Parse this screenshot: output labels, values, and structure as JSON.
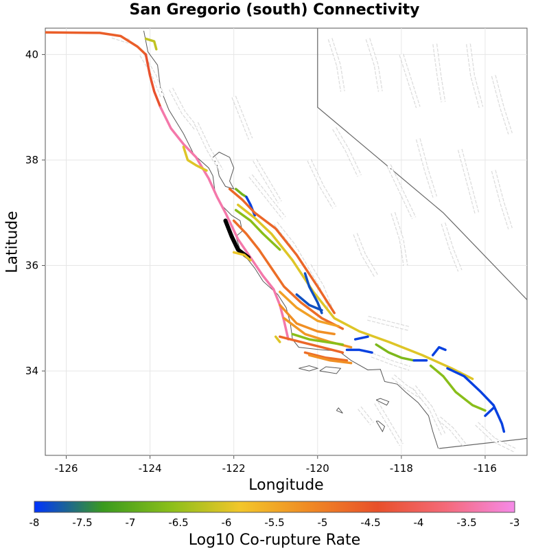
{
  "title": "San Gregorio (south) Connectivity",
  "axes": {
    "xlabel": "Longitude",
    "ylabel": "Latitude",
    "xlim": [
      -126.5,
      -115.0
    ],
    "ylim": [
      32.4,
      40.5
    ],
    "xticks": [
      -126,
      -124,
      -122,
      -120,
      -118,
      -116
    ],
    "yticks": [
      34,
      36,
      38,
      40
    ],
    "xtick_labels": [
      "-126",
      "-124",
      "-122",
      "-120",
      "-118",
      "-116"
    ],
    "ytick_labels": [
      "34",
      "36",
      "38",
      "40"
    ]
  },
  "colorbar": {
    "label": "Log10 Co-rupture Rate",
    "min": -8,
    "max": -3,
    "ticks": [
      "-8",
      "-7.5",
      "-7",
      "-6.5",
      "-6",
      "-5.5",
      "-5",
      "-4.5",
      "-4",
      "-3.5",
      "-3"
    ],
    "stops": [
      "#0033ff",
      "#3a9a1e",
      "#8cbf1a",
      "#f2c62a",
      "#f08a24",
      "#e8502a",
      "#f46a7a",
      "#f58ae8"
    ]
  },
  "source_section": "San Gregorio (south)",
  "fault_traces": [
    {
      "name": "mendocino-offshore",
      "rate": -4.6,
      "coords": [
        [
          -126.5,
          40.42
        ],
        [
          -125.2,
          40.41
        ],
        [
          -124.7,
          40.35
        ],
        [
          -124.3,
          40.15
        ],
        [
          -124.1,
          40.0
        ]
      ]
    },
    {
      "name": "san-andreas-north-coast",
      "rate": -4.4,
      "coords": [
        [
          -124.1,
          40.0
        ],
        [
          -124.0,
          39.6
        ],
        [
          -123.9,
          39.3
        ],
        [
          -123.75,
          39.0
        ]
      ]
    },
    {
      "name": "san-andreas-peninsula",
      "rate": -3.4,
      "coords": [
        [
          -123.75,
          39.0
        ],
        [
          -123.5,
          38.6
        ],
        [
          -123.2,
          38.3
        ],
        [
          -122.9,
          38.05
        ],
        [
          -122.6,
          37.65
        ],
        [
          -122.4,
          37.3
        ],
        [
          -122.2,
          37.0
        ],
        [
          -121.9,
          36.5
        ],
        [
          -121.6,
          36.15
        ],
        [
          -121.3,
          35.8
        ],
        [
          -121.05,
          35.55
        ],
        [
          -120.9,
          35.25
        ],
        [
          -120.8,
          34.95
        ],
        [
          -120.7,
          34.6
        ]
      ]
    },
    {
      "name": "maacama-green",
      "rate": -6.2,
      "coords": [
        [
          -124.1,
          40.3
        ],
        [
          -123.9,
          40.25
        ],
        [
          -123.85,
          40.1
        ]
      ]
    },
    {
      "name": "point-reyes-offshore",
      "rate": -6.0,
      "coords": [
        [
          -123.2,
          38.25
        ],
        [
          -123.1,
          38.0
        ],
        [
          -122.9,
          37.9
        ],
        [
          -122.65,
          37.8
        ]
      ]
    },
    {
      "name": "hayward-green",
      "rate": -6.8,
      "coords": [
        [
          -121.95,
          37.45
        ],
        [
          -121.8,
          37.35
        ],
        [
          -121.7,
          37.3
        ]
      ]
    },
    {
      "name": "calaveras-blue",
      "rate": -7.9,
      "coords": [
        [
          -121.7,
          37.3
        ],
        [
          -121.6,
          37.15
        ],
        [
          -121.5,
          36.95
        ]
      ]
    },
    {
      "name": "calaveras-orange",
      "rate": -4.7,
      "coords": [
        [
          -122.1,
          37.45
        ],
        [
          -121.8,
          37.25
        ],
        [
          -121.5,
          37.0
        ],
        [
          -121.0,
          36.7
        ],
        [
          -120.5,
          36.2
        ],
        [
          -120.0,
          35.6
        ],
        [
          -119.6,
          35.1
        ]
      ]
    },
    {
      "name": "sargent-lime",
      "rate": -6.0,
      "coords": [
        [
          -121.9,
          37.15
        ],
        [
          -121.5,
          36.9
        ],
        [
          -121.1,
          36.6
        ],
        [
          -120.6,
          36.1
        ],
        [
          -120.1,
          35.5
        ],
        [
          -119.6,
          35.0
        ],
        [
          -119.0,
          34.75
        ],
        [
          -118.3,
          34.55
        ],
        [
          -117.5,
          34.3
        ],
        [
          -116.8,
          34.05
        ],
        [
          -116.3,
          33.85
        ]
      ]
    },
    {
      "name": "monterey-bay-orange",
      "rate": -4.8,
      "coords": [
        [
          -122.0,
          36.85
        ],
        [
          -121.7,
          36.6
        ],
        [
          -121.4,
          36.3
        ],
        [
          -121.1,
          35.95
        ],
        [
          -120.8,
          35.6
        ],
        [
          -120.4,
          35.3
        ],
        [
          -119.9,
          35.0
        ],
        [
          -119.4,
          34.8
        ]
      ]
    },
    {
      "name": "san-gregorio-south",
      "rate": -3.0,
      "source": true,
      "coords": [
        [
          -122.2,
          36.85
        ],
        [
          -122.05,
          36.55
        ],
        [
          -121.9,
          36.3
        ],
        [
          -121.65,
          36.15
        ]
      ]
    },
    {
      "name": "hosgri-lime",
      "rate": -5.9,
      "coords": [
        [
          -122.0,
          36.25
        ],
        [
          -121.75,
          36.2
        ],
        [
          -121.6,
          36.1
        ]
      ]
    },
    {
      "name": "rinconada-green",
      "rate": -6.6,
      "coords": [
        [
          -121.95,
          37.05
        ],
        [
          -121.6,
          36.85
        ],
        [
          -121.3,
          36.6
        ],
        [
          -120.9,
          36.3
        ]
      ]
    },
    {
      "name": "temblor-blue",
      "rate": -7.8,
      "coords": [
        [
          -120.3,
          35.85
        ],
        [
          -120.2,
          35.6
        ],
        [
          -120.0,
          35.3
        ],
        [
          -119.9,
          35.1
        ]
      ]
    },
    {
      "name": "kern-blue",
      "rate": -7.8,
      "coords": [
        [
          -120.5,
          35.45
        ],
        [
          -120.2,
          35.25
        ],
        [
          -119.9,
          35.15
        ]
      ]
    },
    {
      "name": "los-osos-yellow",
      "rate": -5.4,
      "coords": [
        [
          -120.9,
          35.5
        ],
        [
          -120.5,
          35.2
        ],
        [
          -120.0,
          34.95
        ],
        [
          -119.5,
          34.85
        ]
      ]
    },
    {
      "name": "santa-ynez-yellow",
      "rate": -5.3,
      "coords": [
        [
          -120.8,
          35.0
        ],
        [
          -120.3,
          34.7
        ],
        [
          -119.7,
          34.55
        ],
        [
          -119.2,
          34.45
        ]
      ]
    },
    {
      "name": "casmalia-gold",
      "rate": -5.2,
      "coords": [
        [
          -120.9,
          35.25
        ],
        [
          -120.5,
          34.9
        ],
        [
          -120.0,
          34.75
        ],
        [
          -119.6,
          34.7
        ]
      ]
    },
    {
      "name": "santa-barbara-orange",
      "rate": -4.7,
      "coords": [
        [
          -120.9,
          34.65
        ],
        [
          -120.4,
          34.55
        ],
        [
          -119.9,
          34.45
        ],
        [
          -119.4,
          34.35
        ]
      ]
    },
    {
      "name": "ventura-green",
      "rate": -6.6,
      "coords": [
        [
          -120.6,
          34.7
        ],
        [
          -120.2,
          34.6
        ],
        [
          -119.8,
          34.55
        ],
        [
          -119.4,
          34.5
        ]
      ]
    },
    {
      "name": "oak-ridge-blue",
      "rate": -7.9,
      "coords": [
        [
          -119.3,
          34.4
        ],
        [
          -119.0,
          34.4
        ],
        [
          -118.7,
          34.35
        ]
      ]
    },
    {
      "name": "pitas-point-blue",
      "rate": -7.9,
      "coords": [
        [
          -119.1,
          34.6
        ],
        [
          -118.8,
          34.65
        ]
      ]
    },
    {
      "name": "channel-islands-orange",
      "rate": -4.8,
      "coords": [
        [
          -120.3,
          34.35
        ],
        [
          -119.8,
          34.25
        ],
        [
          -119.3,
          34.2
        ]
      ]
    },
    {
      "name": "malibu-gold",
      "rate": -5.2,
      "coords": [
        [
          -120.2,
          34.3
        ],
        [
          -119.7,
          34.2
        ],
        [
          -119.2,
          34.15
        ]
      ]
    },
    {
      "name": "sierra-madre-green",
      "rate": -6.7,
      "coords": [
        [
          -118.6,
          34.5
        ],
        [
          -118.3,
          34.35
        ],
        [
          -118.0,
          34.25
        ],
        [
          -117.7,
          34.2
        ]
      ]
    },
    {
      "name": "cucamonga-blue",
      "rate": -7.9,
      "coords": [
        [
          -117.7,
          34.2
        ],
        [
          -117.4,
          34.2
        ]
      ]
    },
    {
      "name": "san-jacinto-green",
      "rate": -6.6,
      "coords": [
        [
          -117.3,
          34.1
        ],
        [
          -117.0,
          33.9
        ],
        [
          -116.7,
          33.6
        ],
        [
          -116.3,
          33.35
        ],
        [
          -116.0,
          33.25
        ]
      ]
    },
    {
      "name": "elsinore-blue",
      "rate": -7.9,
      "coords": [
        [
          -116.9,
          34.05
        ],
        [
          -116.5,
          33.9
        ],
        [
          -116.1,
          33.6
        ],
        [
          -115.8,
          33.35
        ],
        [
          -115.6,
          33.0
        ],
        [
          -115.55,
          32.85
        ]
      ]
    },
    {
      "name": "garlock-blue",
      "rate": -7.9,
      "coords": [
        [
          -117.25,
          34.3
        ],
        [
          -117.1,
          34.45
        ],
        [
          -116.95,
          34.4
        ]
      ]
    },
    {
      "name": "elmore-blue",
      "rate": -7.9,
      "coords": [
        [
          -116.0,
          33.15
        ],
        [
          -115.8,
          33.3
        ]
      ]
    },
    {
      "name": "hosgri-offshore-lime",
      "rate": -6.0,
      "coords": [
        [
          -121.0,
          34.65
        ],
        [
          -120.9,
          34.55
        ]
      ]
    }
  ],
  "grey_faults": [
    [
      [
        -124.9,
        40.35
      ],
      [
        -124.7,
        40.3
      ],
      [
        -124.5,
        40.25
      ]
    ],
    [
      [
        -124.2,
        40.0
      ],
      [
        -123.9,
        39.6
      ],
      [
        -123.7,
        39.2
      ]
    ],
    [
      [
        -123.5,
        39.35
      ],
      [
        -123.2,
        38.9
      ],
      [
        -122.9,
        38.6
      ]
    ],
    [
      [
        -122.9,
        38.7
      ],
      [
        -122.6,
        38.2
      ],
      [
        -122.3,
        37.8
      ]
    ],
    [
      [
        -122.0,
        39.2
      ],
      [
        -121.8,
        38.8
      ],
      [
        -121.6,
        38.4
      ]
    ],
    [
      [
        -121.5,
        38.0
      ],
      [
        -121.2,
        37.6
      ],
      [
        -120.9,
        37.2
      ]
    ],
    [
      [
        -121.6,
        37.7
      ],
      [
        -121.2,
        37.3
      ],
      [
        -120.8,
        36.9
      ]
    ],
    [
      [
        -121.0,
        36.8
      ],
      [
        -120.6,
        36.4
      ],
      [
        -120.3,
        36.0
      ]
    ],
    [
      [
        -120.2,
        36.0
      ],
      [
        -119.9,
        35.6
      ],
      [
        -119.7,
        35.2
      ]
    ],
    [
      [
        -119.1,
        36.6
      ],
      [
        -118.9,
        36.2
      ],
      [
        -118.6,
        35.8
      ]
    ],
    [
      [
        -118.2,
        37.0
      ],
      [
        -118.0,
        36.5
      ],
      [
        -117.9,
        36.0
      ]
    ],
    [
      [
        -119.6,
        38.6
      ],
      [
        -119.3,
        38.2
      ],
      [
        -119.0,
        37.7
      ]
    ],
    [
      [
        -120.2,
        38.0
      ],
      [
        -119.9,
        37.5
      ],
      [
        -119.6,
        37.1
      ]
    ],
    [
      [
        -118.3,
        37.9
      ],
      [
        -118.0,
        37.4
      ],
      [
        -117.7,
        36.9
      ]
    ],
    [
      [
        -119.7,
        40.3
      ],
      [
        -119.5,
        39.8
      ],
      [
        -119.4,
        39.3
      ]
    ],
    [
      [
        -118.8,
        40.3
      ],
      [
        -118.6,
        39.8
      ],
      [
        -118.5,
        39.3
      ]
    ],
    [
      [
        -118.0,
        40.0
      ],
      [
        -117.8,
        39.5
      ],
      [
        -117.6,
        39.0
      ]
    ],
    [
      [
        -117.2,
        40.2
      ],
      [
        -117.1,
        39.6
      ],
      [
        -117.0,
        39.1
      ]
    ],
    [
      [
        -116.4,
        40.2
      ],
      [
        -116.3,
        39.6
      ],
      [
        -116.1,
        39.0
      ]
    ],
    [
      [
        -115.8,
        39.6
      ],
      [
        -115.6,
        39.0
      ],
      [
        -115.4,
        38.5
      ]
    ],
    [
      [
        -117.6,
        38.4
      ],
      [
        -117.4,
        37.8
      ],
      [
        -117.2,
        37.3
      ]
    ],
    [
      [
        -116.6,
        38.2
      ],
      [
        -116.4,
        37.6
      ],
      [
        -116.2,
        37.0
      ]
    ],
    [
      [
        -115.8,
        37.8
      ],
      [
        -115.6,
        37.2
      ],
      [
        -115.4,
        36.7
      ]
    ],
    [
      [
        -117.0,
        36.8
      ],
      [
        -116.8,
        36.3
      ],
      [
        -116.6,
        35.9
      ]
    ],
    [
      [
        -118.8,
        35.0
      ],
      [
        -118.3,
        34.9
      ],
      [
        -117.8,
        34.8
      ]
    ],
    [
      [
        -118.7,
        34.3
      ],
      [
        -118.2,
        34.15
      ],
      [
        -117.8,
        34.05
      ]
    ],
    [
      [
        -118.2,
        33.9
      ],
      [
        -117.9,
        33.7
      ],
      [
        -117.5,
        33.5
      ]
    ],
    [
      [
        -117.7,
        33.7
      ],
      [
        -117.3,
        33.3
      ],
      [
        -117.0,
        32.8
      ]
    ],
    [
      [
        -118.6,
        33.4
      ],
      [
        -118.3,
        33.0
      ],
      [
        -118.0,
        32.6
      ]
    ],
    [
      [
        -119.0,
        33.3
      ],
      [
        -118.7,
        33.0
      ]
    ],
    [
      [
        -117.1,
        33.1
      ],
      [
        -116.8,
        32.9
      ],
      [
        -116.5,
        32.6
      ]
    ],
    [
      [
        -116.2,
        33.0
      ],
      [
        -115.8,
        32.7
      ],
      [
        -115.3,
        32.5
      ]
    ]
  ],
  "state_border": [
    [
      -120.0,
      40.5
    ],
    [
      -120.0,
      39.0
    ],
    [
      -117.0,
      37.0
    ],
    [
      -115.0,
      35.35
    ]
  ],
  "mexico_border": [
    [
      -117.1,
      32.53
    ],
    [
      -115.0,
      32.72
    ]
  ],
  "coastline": [
    [
      -124.15,
      40.45
    ],
    [
      -124.05,
      40.05
    ],
    [
      -123.82,
      39.8
    ],
    [
      -123.75,
      39.35
    ],
    [
      -123.55,
      38.95
    ],
    [
      -123.2,
      38.5
    ],
    [
      -122.95,
      38.1
    ],
    [
      -122.6,
      37.85
    ],
    [
      -122.5,
      37.7
    ],
    [
      -122.45,
      37.4
    ],
    [
      -122.3,
      37.15
    ],
    [
      -122.05,
      36.95
    ],
    [
      -121.85,
      36.85
    ],
    [
      -121.8,
      36.65
    ],
    [
      -121.95,
      36.55
    ],
    [
      -121.85,
      36.3
    ],
    [
      -121.5,
      35.95
    ],
    [
      -121.3,
      35.7
    ],
    [
      -120.95,
      35.45
    ],
    [
      -120.75,
      35.2
    ],
    [
      -120.65,
      34.9
    ],
    [
      -120.6,
      34.6
    ],
    [
      -120.45,
      34.45
    ],
    [
      -119.9,
      34.4
    ],
    [
      -119.5,
      34.38
    ],
    [
      -119.2,
      34.2
    ],
    [
      -118.8,
      34.02
    ],
    [
      -118.5,
      34.03
    ],
    [
      -118.4,
      33.8
    ],
    [
      -118.1,
      33.75
    ],
    [
      -117.9,
      33.6
    ],
    [
      -117.6,
      33.4
    ],
    [
      -117.35,
      33.15
    ],
    [
      -117.25,
      32.85
    ],
    [
      -117.12,
      32.53
    ]
  ],
  "bay_outline": [
    [
      -122.5,
      38.05
    ],
    [
      -122.35,
      38.15
    ],
    [
      -122.1,
      38.05
    ],
    [
      -122.0,
      37.85
    ],
    [
      -122.1,
      37.6
    ],
    [
      -122.0,
      37.45
    ],
    [
      -122.2,
      37.5
    ],
    [
      -122.35,
      37.7
    ],
    [
      -122.4,
      37.9
    ],
    [
      -122.5,
      38.05
    ]
  ],
  "islands": [
    [
      [
        -120.45,
        34.05
      ],
      [
        -120.2,
        34.0
      ],
      [
        -120.0,
        34.05
      ],
      [
        -120.2,
        34.1
      ],
      [
        -120.45,
        34.05
      ]
    ],
    [
      [
        -119.95,
        34.0
      ],
      [
        -119.55,
        33.95
      ],
      [
        -119.45,
        34.05
      ],
      [
        -119.8,
        34.08
      ],
      [
        -119.95,
        34.0
      ]
    ],
    [
      [
        -118.6,
        33.45
      ],
      [
        -118.35,
        33.35
      ],
      [
        -118.3,
        33.42
      ],
      [
        -118.5,
        33.48
      ],
      [
        -118.6,
        33.45
      ]
    ],
    [
      [
        -118.6,
        33.05
      ],
      [
        -118.45,
        32.85
      ],
      [
        -118.4,
        32.95
      ],
      [
        -118.55,
        33.05
      ],
      [
        -118.6,
        33.05
      ]
    ],
    [
      [
        -119.55,
        33.25
      ],
      [
        -119.4,
        33.2
      ],
      [
        -119.5,
        33.3
      ],
      [
        -119.55,
        33.25
      ]
    ]
  ]
}
